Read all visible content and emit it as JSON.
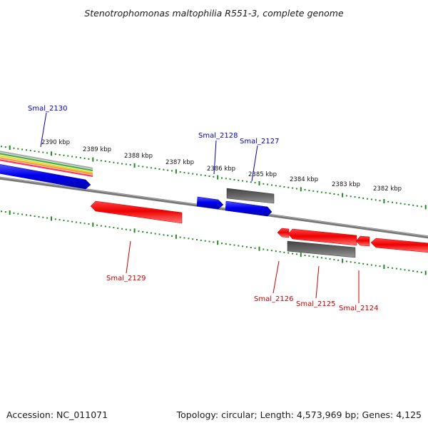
{
  "title": "Stenotrophomonas maltophilia R551-3, complete genome",
  "footer": {
    "accession": "Accession: NC_011071",
    "topology": "Topology: circular; Length: 4,573,969 bp; Genes: 4,125"
  },
  "colors": {
    "backbone": "#777777",
    "tick": "#1e8c1e",
    "forward_label": "#0000bb",
    "reverse_label": "#cc0000",
    "blue_gene": "#0000ee",
    "red_gene": "#ee0000",
    "grey_gene": "#555555",
    "gc_bands": [
      "#aaaaaa",
      "#44aa44",
      "#dddd33",
      "#ff9933",
      "#ff3366"
    ]
  },
  "ticks": [
    {
      "kbp": 2390,
      "label": "2390 kbp"
    },
    {
      "kbp": 2389,
      "label": "2389 kbp"
    },
    {
      "kbp": 2388,
      "label": "2388 kbp"
    },
    {
      "kbp": 2387,
      "label": "2387 kbp"
    },
    {
      "kbp": 2386,
      "label": "2386 kbp"
    },
    {
      "kbp": 2385,
      "label": "2385 kbp"
    },
    {
      "kbp": 2384,
      "label": "2384 kbp"
    },
    {
      "kbp": 2383,
      "label": "2383 kbp"
    },
    {
      "kbp": 2382,
      "label": "2382 kbp"
    }
  ],
  "genes": [
    {
      "name": "Smal_2130",
      "strand": "forward",
      "color": "blue"
    },
    {
      "name": "Smal_2129",
      "strand": "reverse",
      "color": "red"
    },
    {
      "name": "Smal_2128",
      "strand": "forward",
      "color": "blue"
    },
    {
      "name": "Smal_2127",
      "strand": "forward",
      "color": "blue"
    },
    {
      "name": "Smal_2126",
      "strand": "reverse",
      "color": "red"
    },
    {
      "name": "Smal_2125",
      "strand": "reverse",
      "color": "red"
    },
    {
      "name": "Smal_2124",
      "strand": "reverse",
      "color": "red"
    }
  ]
}
